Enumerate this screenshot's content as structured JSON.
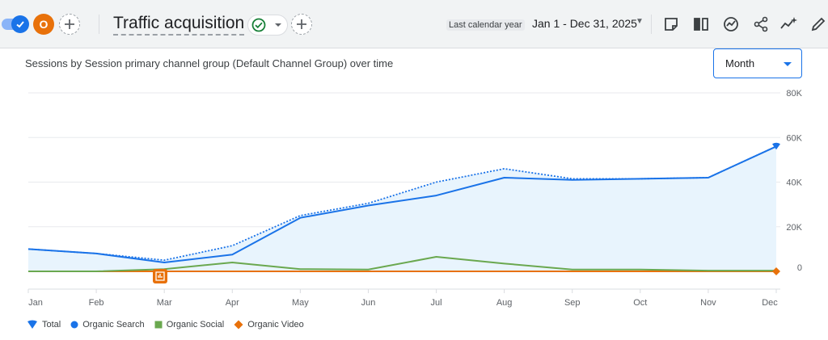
{
  "header": {
    "avatar_letter": "O",
    "title": "Traffic acquisition",
    "date_label": "Last calendar year",
    "date_range": "Jan 1 - Dec 31, 2025"
  },
  "chart_header": {
    "title": "Sessions by Session primary channel group (Default Channel Group) over time",
    "granularity": "Month"
  },
  "colors": {
    "total": "#1a73e8",
    "organic_search": "#1a73e8",
    "organic_social": "#6aa84f",
    "organic_video": "#e8710a",
    "area_fill": "#e8f4fd"
  },
  "chart_data": {
    "type": "line",
    "categories": [
      "Jan",
      "Feb",
      "Mar",
      "Apr",
      "May",
      "Jun",
      "Jul",
      "Aug",
      "Sep",
      "Oct",
      "Nov",
      "Dec"
    ],
    "ylim": [
      0,
      80000
    ],
    "y_ticks": [
      {
        "v": 0,
        "label": "0"
      },
      {
        "v": 20000,
        "label": "20K"
      },
      {
        "v": 40000,
        "label": "40K"
      },
      {
        "v": 60000,
        "label": "60K"
      },
      {
        "v": 80000,
        "label": "80K"
      }
    ],
    "grid": true,
    "legend_position": "bottom-left",
    "series": [
      {
        "name": "Total",
        "style": "dotted",
        "values": [
          10000,
          8000,
          5000,
          11500,
          25000,
          30500,
          40000,
          46000,
          41500,
          41500,
          42000,
          56000
        ]
      },
      {
        "name": "Organic Search",
        "style": "solid",
        "values": [
          10000,
          8000,
          4000,
          7500,
          24000,
          29500,
          34000,
          42000,
          41000,
          41500,
          42000,
          56000
        ]
      },
      {
        "name": "Organic Social",
        "style": "solid",
        "values": [
          0,
          0,
          1000,
          4000,
          1000,
          800,
          6500,
          3500,
          800,
          800,
          300,
          300
        ]
      },
      {
        "name": "Organic Video",
        "style": "solid",
        "values": [
          0,
          0,
          0,
          0,
          0,
          0,
          0,
          0,
          0,
          0,
          0,
          0
        ]
      }
    ]
  }
}
